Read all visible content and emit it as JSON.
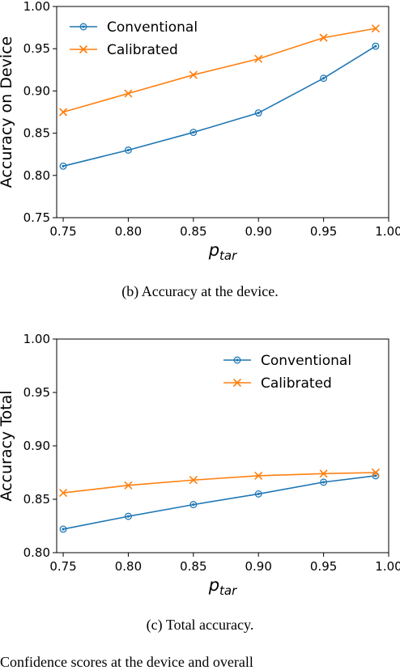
{
  "colors": {
    "conventional": "#1f77b4",
    "calibrated": "#ff7f0e",
    "axis": "#000000"
  },
  "chart_data": [
    {
      "type": "line",
      "ylabel": "Accuracy on Device",
      "xlabel": "p",
      "xlabel_sub": "tar",
      "xlim": [
        0.745,
        1.0
      ],
      "ylim": [
        0.75,
        1.0
      ],
      "xticks": [
        0.75,
        0.8,
        0.85,
        0.9,
        0.95,
        1.0
      ],
      "xtick_labels": [
        "0.75",
        "0.80",
        "0.85",
        "0.90",
        "0.95",
        "1.00"
      ],
      "yticks": [
        0.75,
        0.8,
        0.85,
        0.9,
        0.95,
        1.0
      ],
      "ytick_labels": [
        "0.75",
        "0.80",
        "0.85",
        "0.90",
        "0.95",
        "1.00"
      ],
      "legend_position": "upper-left",
      "grid": false,
      "x": [
        0.75,
        0.8,
        0.85,
        0.9,
        0.95,
        0.99
      ],
      "series": [
        {
          "name": "Conventional",
          "marker": "circle",
          "values": [
            0.811,
            0.83,
            0.851,
            0.874,
            0.915,
            0.953
          ]
        },
        {
          "name": "Calibrated",
          "marker": "x",
          "values": [
            0.875,
            0.897,
            0.919,
            0.938,
            0.963,
            0.974
          ]
        }
      ],
      "caption": "(b)  Accuracy at the device."
    },
    {
      "type": "line",
      "ylabel": "Accuracy Total",
      "xlabel": "p",
      "xlabel_sub": "tar",
      "xlim": [
        0.745,
        1.0
      ],
      "ylim": [
        0.8,
        1.0
      ],
      "xticks": [
        0.75,
        0.8,
        0.85,
        0.9,
        0.95,
        1.0
      ],
      "xtick_labels": [
        "0.75",
        "0.80",
        "0.85",
        "0.90",
        "0.95",
        "1.00"
      ],
      "yticks": [
        0.8,
        0.85,
        0.9,
        0.95,
        1.0
      ],
      "ytick_labels": [
        "0.80",
        "0.85",
        "0.90",
        "0.95",
        "1.00"
      ],
      "legend_position": "upper-right",
      "grid": false,
      "x": [
        0.75,
        0.8,
        0.85,
        0.9,
        0.95,
        0.99
      ],
      "series": [
        {
          "name": "Conventional",
          "marker": "circle",
          "values": [
            0.822,
            0.834,
            0.845,
            0.855,
            0.866,
            0.872
          ]
        },
        {
          "name": "Calibrated",
          "marker": "x",
          "values": [
            0.856,
            0.863,
            0.868,
            0.872,
            0.874,
            0.875
          ]
        }
      ],
      "caption": "(c)  Total accuracy."
    }
  ],
  "footer_text": "Confidence scores at the device and overall"
}
